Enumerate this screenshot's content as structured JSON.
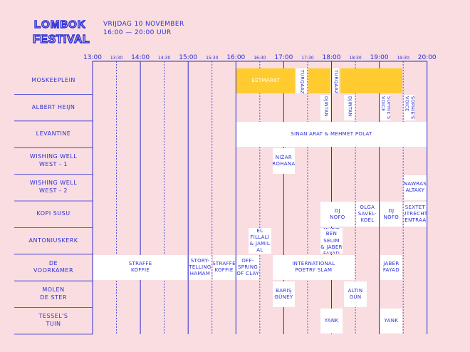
{
  "festival": {
    "logo_line1": "LOMBOK",
    "logo_line2": "FESTIVAL",
    "day": "VRIJDAG 10 NOVEMBER",
    "hours": "16:00  —  20:00 UUR"
  },
  "colors": {
    "background": "#f9dde0",
    "ink": "#2b2fd6",
    "highlight": "#ffcb2e",
    "block": "#ffffff"
  },
  "timeline": {
    "hours": [
      "13:00",
      "14:00",
      "15:00",
      "16:00",
      "17:00",
      "18:00",
      "19:00",
      "20:00"
    ],
    "halves": [
      "13:30",
      "14:30",
      "15:30",
      "16:30",
      "17:30",
      "18:30",
      "19:30"
    ]
  },
  "venues": [
    "MOSKEEPLEIN",
    "ALBERT HEIJN",
    "LEVANTINE",
    "WISHING WELL\nWEST - 1",
    "WISHING WELL\nWEST - 2",
    "KOPI SUSU",
    "ANTONIUSKERK",
    "DE\nVOORKAMER",
    "MOLEN\nDE STER",
    "TESSEL'S\nTUIN"
  ],
  "events": [
    {
      "venue": 0,
      "start": "16:00",
      "end": "17:15",
      "title": "EETMARKT",
      "style": "yellow"
    },
    {
      "venue": 0,
      "start": "17:15",
      "end": "17:30",
      "title": "TURQAAZE",
      "style": "white-vertical"
    },
    {
      "venue": 0,
      "start": "17:30",
      "end": "18:00",
      "title": "",
      "style": "yellow"
    },
    {
      "venue": 0,
      "start": "18:00",
      "end": "18:10",
      "title": "TURQAAZE",
      "style": "white-vertical"
    },
    {
      "venue": 0,
      "start": "18:10",
      "end": "19:30",
      "title": "",
      "style": "yellow"
    },
    {
      "venue": 1,
      "start": "17:45",
      "end": "18:00",
      "title": "DJINTAN",
      "style": "white-vertical"
    },
    {
      "venue": 1,
      "start": "18:15",
      "end": "18:30",
      "title": "DJINTAN",
      "style": "white-vertical"
    },
    {
      "venue": 1,
      "start": "19:00",
      "end": "19:15",
      "title": "SOPHIE'S\nVOICE",
      "style": "white-vertical"
    },
    {
      "venue": 1,
      "start": "19:30",
      "end": "19:45",
      "title": "SOPHIE'S\nVOICE",
      "style": "white-vertical"
    },
    {
      "venue": 2,
      "start": "16:00",
      "end": "20:00",
      "title": "SINAN ARAT & MEHMET POLAT",
      "style": "white"
    },
    {
      "venue": 3,
      "start": "16:45",
      "end": "17:15",
      "title": "NIZAR\nROHANA",
      "style": "white"
    },
    {
      "venue": 4,
      "start": "19:30",
      "end": "20:00",
      "title": "NAWRAS\nALTAKY",
      "style": "white"
    },
    {
      "venue": 5,
      "start": "17:45",
      "end": "18:30",
      "title": "DJ\nNOFO",
      "style": "white"
    },
    {
      "venue": 5,
      "start": "18:30",
      "end": "19:00",
      "title": "OLGA\nSAVEL-\nKOEL",
      "style": "white"
    },
    {
      "venue": 5,
      "start": "19:00",
      "end": "19:30",
      "title": "DJ\nNOFO",
      "style": "white"
    },
    {
      "venue": 5,
      "start": "19:30",
      "end": "20:00",
      "title": "SEXTET\nUTRECHT\nCENTRAAL",
      "style": "white"
    },
    {
      "venue": 6,
      "start": "16:15",
      "end": "16:45",
      "title": "KARIMA\nEL FILLALI\n& JAMIL\nAL ASADI",
      "style": "white"
    },
    {
      "venue": 6,
      "start": "17:45",
      "end": "18:15",
      "title": "WALID\nBEN SELIM\n& JABER\nFAYAD",
      "style": "white"
    },
    {
      "venue": 7,
      "start": "13:00",
      "end": "15:00",
      "title": "STRAFFE\nKOFFIE",
      "style": "white"
    },
    {
      "venue": 7,
      "start": "15:00",
      "end": "15:30",
      "title": "STORY-\nTELLING\nHAMAM",
      "style": "white"
    },
    {
      "venue": 7,
      "start": "15:30",
      "end": "16:00",
      "title": "STRAFFE\nKOFFIE",
      "style": "white"
    },
    {
      "venue": 7,
      "start": "16:00",
      "end": "16:30",
      "title": "OFF-\nSPRING\nOF CLAY",
      "style": "white"
    },
    {
      "venue": 7,
      "start": "16:45",
      "end": "18:30",
      "title": "INTERNATIONAL\nPOETRY SLAM",
      "style": "white"
    },
    {
      "venue": 7,
      "start": "19:00",
      "end": "19:30",
      "title": "JABER\nFAYAD",
      "style": "white"
    },
    {
      "venue": 8,
      "start": "16:45",
      "end": "17:15",
      "title": "BARIŞ\nGÜNEY",
      "style": "white"
    },
    {
      "venue": 8,
      "start": "18:15",
      "end": "18:45",
      "title": "ALTIN\nGÜN",
      "style": "white"
    },
    {
      "venue": 9,
      "start": "17:45",
      "end": "18:15",
      "title": "YANK",
      "style": "white"
    },
    {
      "venue": 9,
      "start": "19:00",
      "end": "19:30",
      "title": "YANK",
      "style": "white"
    }
  ]
}
